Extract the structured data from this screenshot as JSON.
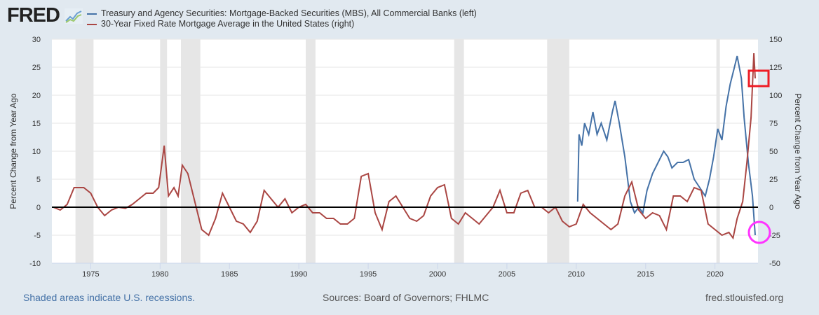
{
  "header": {
    "logo_text": "FRED",
    "legend": [
      {
        "label": "Treasury and Agency Securities: Mortgage-Backed Securities (MBS), All Commercial Banks (left)",
        "color": "#4572a7"
      },
      {
        "label": "30-Year Fixed Rate Mortgage Average in the United States (right)",
        "color": "#aa4643"
      }
    ]
  },
  "footer": {
    "recession_note": "Shaded areas indicate U.S. recessions.",
    "sources": "Sources: Board of Governors; FHLMC",
    "site": "fred.stlouisfed.org"
  },
  "annotations": [
    {
      "shape": "rectangle",
      "color": "#ee1c25",
      "target": "30-Year Fixed Rate Mortgage Average peak, late 2022"
    },
    {
      "shape": "circle",
      "color": "#ff33ff",
      "target": "MBS latest value, late 2022"
    }
  ],
  "chart_data": {
    "type": "line",
    "ylabel_left": "Percent Change from Year Ago",
    "ylabel_right": "Percent Change from Year Ago",
    "ylim_left": [
      -10,
      30
    ],
    "ylim_right": [
      -50,
      150
    ],
    "yticks_left": [
      -10,
      -5,
      0,
      5,
      10,
      15,
      20,
      25,
      30
    ],
    "yticks_right": [
      -50,
      -25,
      0,
      25,
      50,
      75,
      100,
      125,
      150
    ],
    "xlim": [
      1972.2,
      2023.1
    ],
    "xticks": [
      1975,
      1980,
      1985,
      1990,
      1995,
      2000,
      2005,
      2010,
      2015,
      2020
    ],
    "grid": true,
    "legend_placement": "top",
    "recessions": [
      [
        1973.9,
        1975.2
      ],
      [
        1980.0,
        1980.5
      ],
      [
        1981.5,
        1982.9
      ],
      [
        1990.5,
        1991.2
      ],
      [
        2001.2,
        2001.9
      ],
      [
        2007.9,
        2009.5
      ],
      [
        2020.1,
        2020.35
      ]
    ],
    "series": [
      {
        "name": "Treasury and Agency Securities: Mortgage-Backed Securities (MBS), All Commercial Banks (left)",
        "axis": "left",
        "color": "#4572a7",
        "x": [
          2010.1,
          2010.2,
          2010.4,
          2010.6,
          2010.9,
          2011.2,
          2011.5,
          2011.8,
          2012.2,
          2012.6,
          2012.8,
          2013.1,
          2013.5,
          2013.9,
          2014.2,
          2014.5,
          2014.8,
          2015.1,
          2015.5,
          2015.9,
          2016.3,
          2016.6,
          2016.9,
          2017.3,
          2017.7,
          2018.1,
          2018.5,
          2018.9,
          2019.3,
          2019.6,
          2019.9,
          2020.2,
          2020.5,
          2020.8,
          2021.1,
          2021.4,
          2021.6,
          2021.9,
          2022.1,
          2022.4,
          2022.7,
          2022.9
        ],
        "y": [
          1,
          13,
          11,
          15,
          13,
          17,
          13,
          15,
          12,
          17,
          19,
          15,
          9,
          1,
          -1,
          0,
          -1,
          3,
          6,
          8,
          10,
          9,
          7,
          8,
          8,
          8.5,
          5,
          3.5,
          2,
          5,
          9,
          14,
          12,
          18,
          22,
          25,
          27,
          23,
          16,
          8,
          2,
          -5
        ]
      },
      {
        "name": "30-Year Fixed Rate Mortgage Average in the United States (right)",
        "axis": "right",
        "color": "#aa4643",
        "x": [
          1972.3,
          1972.8,
          1973.3,
          1973.8,
          1974.5,
          1975.0,
          1975.5,
          1976.0,
          1976.5,
          1977.0,
          1977.5,
          1978.0,
          1978.5,
          1979.0,
          1979.5,
          1979.9,
          1980.3,
          1980.6,
          1981.0,
          1981.3,
          1981.6,
          1982.0,
          1982.5,
          1983.0,
          1983.5,
          1984.0,
          1984.5,
          1985.0,
          1985.5,
          1986.0,
          1986.5,
          1987.0,
          1987.5,
          1988.0,
          1988.5,
          1989.0,
          1989.5,
          1990.0,
          1990.5,
          1991.0,
          1991.5,
          1992.0,
          1992.5,
          1993.0,
          1993.5,
          1994.0,
          1994.5,
          1995.0,
          1995.5,
          1996.0,
          1996.5,
          1997.0,
          1997.5,
          1998.0,
          1998.5,
          1999.0,
          1999.5,
          2000.0,
          2000.5,
          2001.0,
          2001.5,
          2002.0,
          2002.5,
          2003.0,
          2003.5,
          2004.0,
          2004.5,
          2005.0,
          2005.5,
          2006.0,
          2006.5,
          2007.0,
          2007.5,
          2008.0,
          2008.5,
          2009.0,
          2009.5,
          2010.0,
          2010.5,
          2011.0,
          2011.5,
          2012.0,
          2012.5,
          2013.0,
          2013.5,
          2014.0,
          2014.5,
          2015.0,
          2015.5,
          2016.0,
          2016.5,
          2017.0,
          2017.5,
          2018.0,
          2018.5,
          2019.0,
          2019.5,
          2020.0,
          2020.5,
          2021.0,
          2021.3,
          2021.6,
          2022.0,
          2022.3,
          2022.6,
          2022.8,
          2022.9
        ],
        "y": [
          0,
          -2.5,
          2.5,
          17.5,
          17.5,
          12.5,
          0,
          -7.5,
          -2.5,
          0,
          -1,
          2.5,
          7.5,
          12.5,
          12.5,
          17.5,
          55,
          10,
          17.5,
          10,
          37.5,
          30,
          5,
          -20,
          -25,
          -10,
          12.5,
          0,
          -12.5,
          -15,
          -22.5,
          -12.5,
          15,
          7.5,
          0,
          7.5,
          -5,
          0,
          2.5,
          -5,
          -5,
          -10,
          -10,
          -15,
          -15,
          -10,
          27.5,
          30,
          -5,
          -20,
          5,
          10,
          0,
          -10,
          -12.5,
          -7.5,
          10,
          17.5,
          20,
          -10,
          -15,
          -5,
          -10,
          -15,
          -7.5,
          0,
          15,
          -5,
          -5,
          12.5,
          15,
          0,
          0,
          -5,
          0,
          -12.5,
          -17.5,
          -15,
          2.5,
          -5,
          -10,
          -15,
          -20,
          -15,
          10,
          22.5,
          -2.5,
          -10,
          -5,
          -7.5,
          -20,
          10,
          10,
          5,
          17.5,
          15,
          -15,
          -20,
          -25,
          -22.5,
          -27.5,
          -10,
          5,
          40,
          80,
          137.5,
          115
        ]
      }
    ]
  }
}
